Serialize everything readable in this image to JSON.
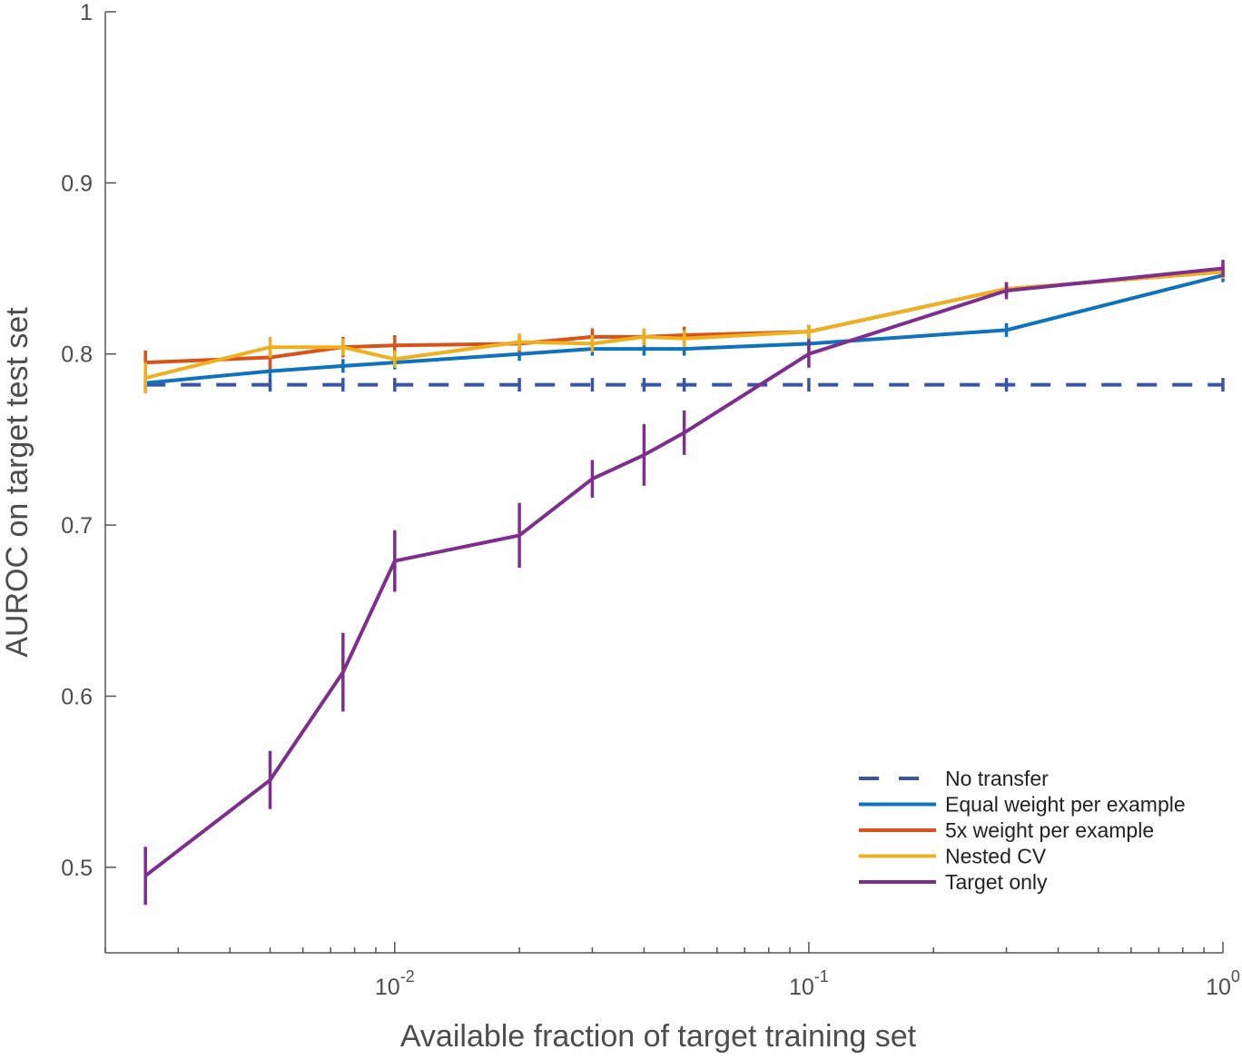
{
  "chart_data": {
    "type": "line",
    "title": "",
    "xlabel": "Available fraction of target training set",
    "ylabel": "AUROC on target test set",
    "xscale": "log",
    "xlim": [
      0.002,
      1
    ],
    "ylim": [
      0.45,
      1
    ],
    "grid": false,
    "legend_position": "bottom-right",
    "x_ticks": [
      {
        "value": 0.01,
        "base": "10",
        "exp": "-2"
      },
      {
        "value": 0.1,
        "base": "10",
        "exp": "-1"
      },
      {
        "value": 1,
        "base": "10",
        "exp": "0"
      }
    ],
    "y_ticks": [
      {
        "value": 0.5,
        "label": "0.5"
      },
      {
        "value": 0.6,
        "label": "0.6"
      },
      {
        "value": 0.7,
        "label": "0.7"
      },
      {
        "value": 0.8,
        "label": "0.8"
      },
      {
        "value": 0.9,
        "label": "0.9"
      },
      {
        "value": 1.0,
        "label": "1"
      }
    ],
    "x": [
      0.0025,
      0.005,
      0.0075,
      0.01,
      0.02,
      0.03,
      0.04,
      0.05,
      0.1,
      0.3,
      1.0
    ],
    "series": [
      {
        "name": "No transfer",
        "color": "#3b55a6",
        "dashed": true,
        "values": [
          0.782,
          0.782,
          0.782,
          0.782,
          0.782,
          0.782,
          0.782,
          0.782,
          0.782,
          0.782,
          0.782
        ],
        "errors": [
          0.004,
          0.004,
          0.004,
          0.004,
          0.004,
          0.004,
          0.004,
          0.004,
          0.004,
          0.004,
          0.004
        ]
      },
      {
        "name": "Equal weight per example",
        "color": "#0f72bd",
        "dashed": false,
        "values": [
          0.783,
          0.79,
          0.793,
          0.795,
          0.8,
          0.803,
          0.803,
          0.803,
          0.806,
          0.814,
          0.846
        ],
        "errors": [
          0.004,
          0.004,
          0.004,
          0.004,
          0.004,
          0.004,
          0.004,
          0.004,
          0.004,
          0.004,
          0.004
        ]
      },
      {
        "name": "5x weight per example",
        "color": "#d95319",
        "dashed": false,
        "values": [
          0.795,
          0.798,
          0.804,
          0.805,
          0.806,
          0.81,
          0.81,
          0.811,
          0.813,
          0.838,
          0.848
        ],
        "errors": [
          0.007,
          0.007,
          0.006,
          0.006,
          0.005,
          0.005,
          0.005,
          0.005,
          0.004,
          0.004,
          0.004
        ]
      },
      {
        "name": "Nested CV",
        "color": "#edb120",
        "dashed": false,
        "values": [
          0.786,
          0.804,
          0.804,
          0.797,
          0.807,
          0.806,
          0.81,
          0.809,
          0.813,
          0.838,
          0.848
        ],
        "errors": [
          0.009,
          0.006,
          0.005,
          0.005,
          0.005,
          0.005,
          0.005,
          0.005,
          0.004,
          0.004,
          0.004
        ]
      },
      {
        "name": "Target only",
        "color": "#7e2f8e",
        "dashed": false,
        "values": [
          0.495,
          0.551,
          0.614,
          0.679,
          0.694,
          0.727,
          0.741,
          0.754,
          0.8,
          0.837,
          0.85
        ],
        "errors": [
          0.017,
          0.017,
          0.023,
          0.018,
          0.019,
          0.011,
          0.018,
          0.013,
          0.008,
          0.005,
          0.005
        ]
      }
    ]
  }
}
